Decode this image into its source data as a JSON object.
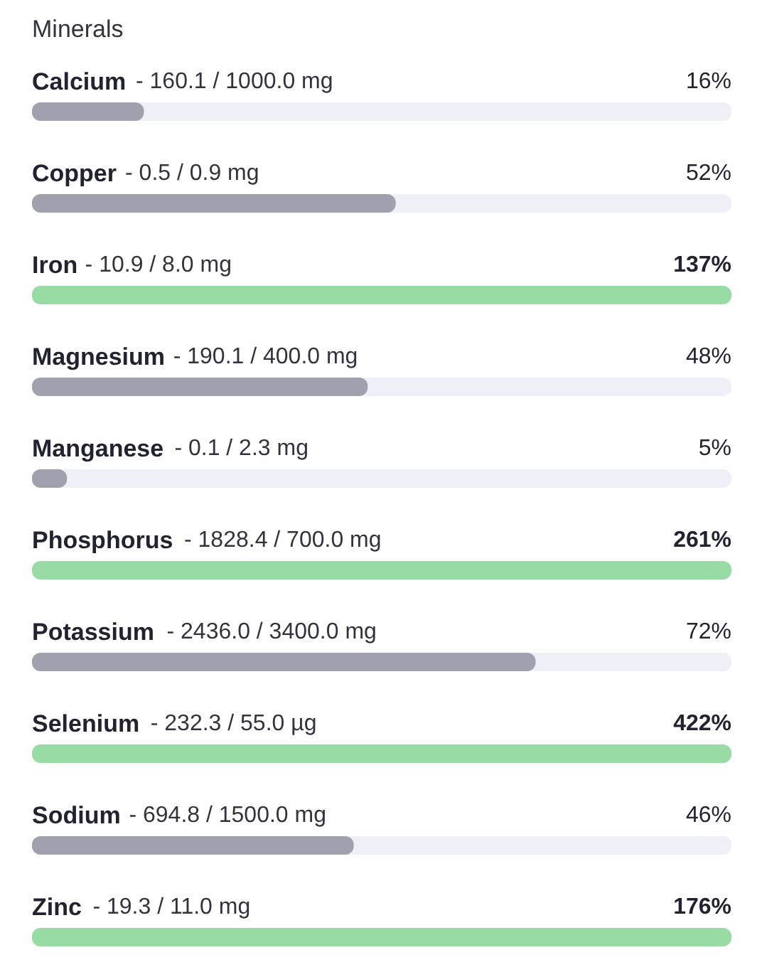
{
  "chart_data": {
    "type": "other",
    "title": "Minerals",
    "categories": [
      "Calcium",
      "Copper",
      "Iron",
      "Magnesium",
      "Manganese",
      "Phosphorus",
      "Potassium",
      "Selenium",
      "Sodium",
      "Zinc"
    ],
    "annotations": [
      "- 160.1 / 1000.0 mg",
      "- 0.5 / 0.9 mg",
      "- 10.9 / 8.0 mg",
      "- 190.1 / 400.0 mg",
      "- 0.1 / 2.3 mg",
      "- 1828.4 / 700.0 mg",
      "- 2436.0 / 3400.0 mg",
      "- 232.3 / 55.0 µg",
      "- 694.8 / 1500.0 mg",
      "- 19.3 / 11.0 mg"
    ],
    "values": [
      16,
      52,
      137,
      48,
      5,
      261,
      72,
      422,
      46,
      176
    ],
    "colors": [
      "#a0a0ae",
      "#a0a0ae",
      "#98dba5",
      "#a0a0ae",
      "#a0a0ae",
      "#98dba5",
      "#a0a0ae",
      "#98dba5",
      "#a0a0ae",
      "#98dba5"
    ],
    "value_labels": [
      "16%",
      "52%",
      "137%",
      "48%",
      "5%",
      "261%",
      "72%",
      "422%",
      "46%",
      "176%"
    ]
  }
}
